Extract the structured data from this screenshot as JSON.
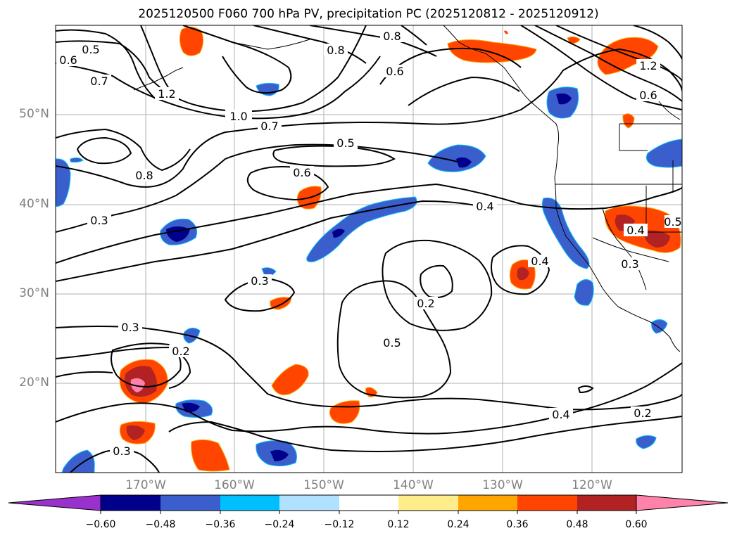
{
  "title": "2025120500 F060 700 hPa PV, precipitation PC (2025120812 - 2025120912)",
  "map": {
    "lat_labels": [
      "50°N",
      "40°N",
      "30°N",
      "20°N"
    ],
    "lon_labels": [
      "170°W",
      "160°W",
      "150°W",
      "140°W",
      "130°W",
      "120°W"
    ],
    "contour_labels": [
      "0.5",
      "0.6",
      "0.7",
      "1.2",
      "1.0",
      "0.7",
      "0.8",
      "0.5",
      "0.6",
      "0.4",
      "0.3",
      "0.3",
      "0.2",
      "0.2",
      "0.3",
      "0.5",
      "0.4",
      "0.4",
      "0.2",
      "0.3",
      "0.8",
      "0.6",
      "0.8",
      "0.6",
      "1.2",
      "0.4",
      "0.5",
      "0.3"
    ]
  },
  "colorbar": {
    "colors": [
      "#9932cc",
      "#00008b",
      "#3a5fcd",
      "#00bfff",
      "#b0e2ff",
      "#ffffff",
      "#ffec8b",
      "#ffa500",
      "#ff4500",
      "#b22222",
      "#ff82ab"
    ],
    "tick_labels": [
      "−0.60",
      "−0.48",
      "−0.36",
      "−0.24",
      "−0.12",
      "0.12",
      "0.24",
      "0.36",
      "0.48",
      "0.60"
    ]
  }
}
